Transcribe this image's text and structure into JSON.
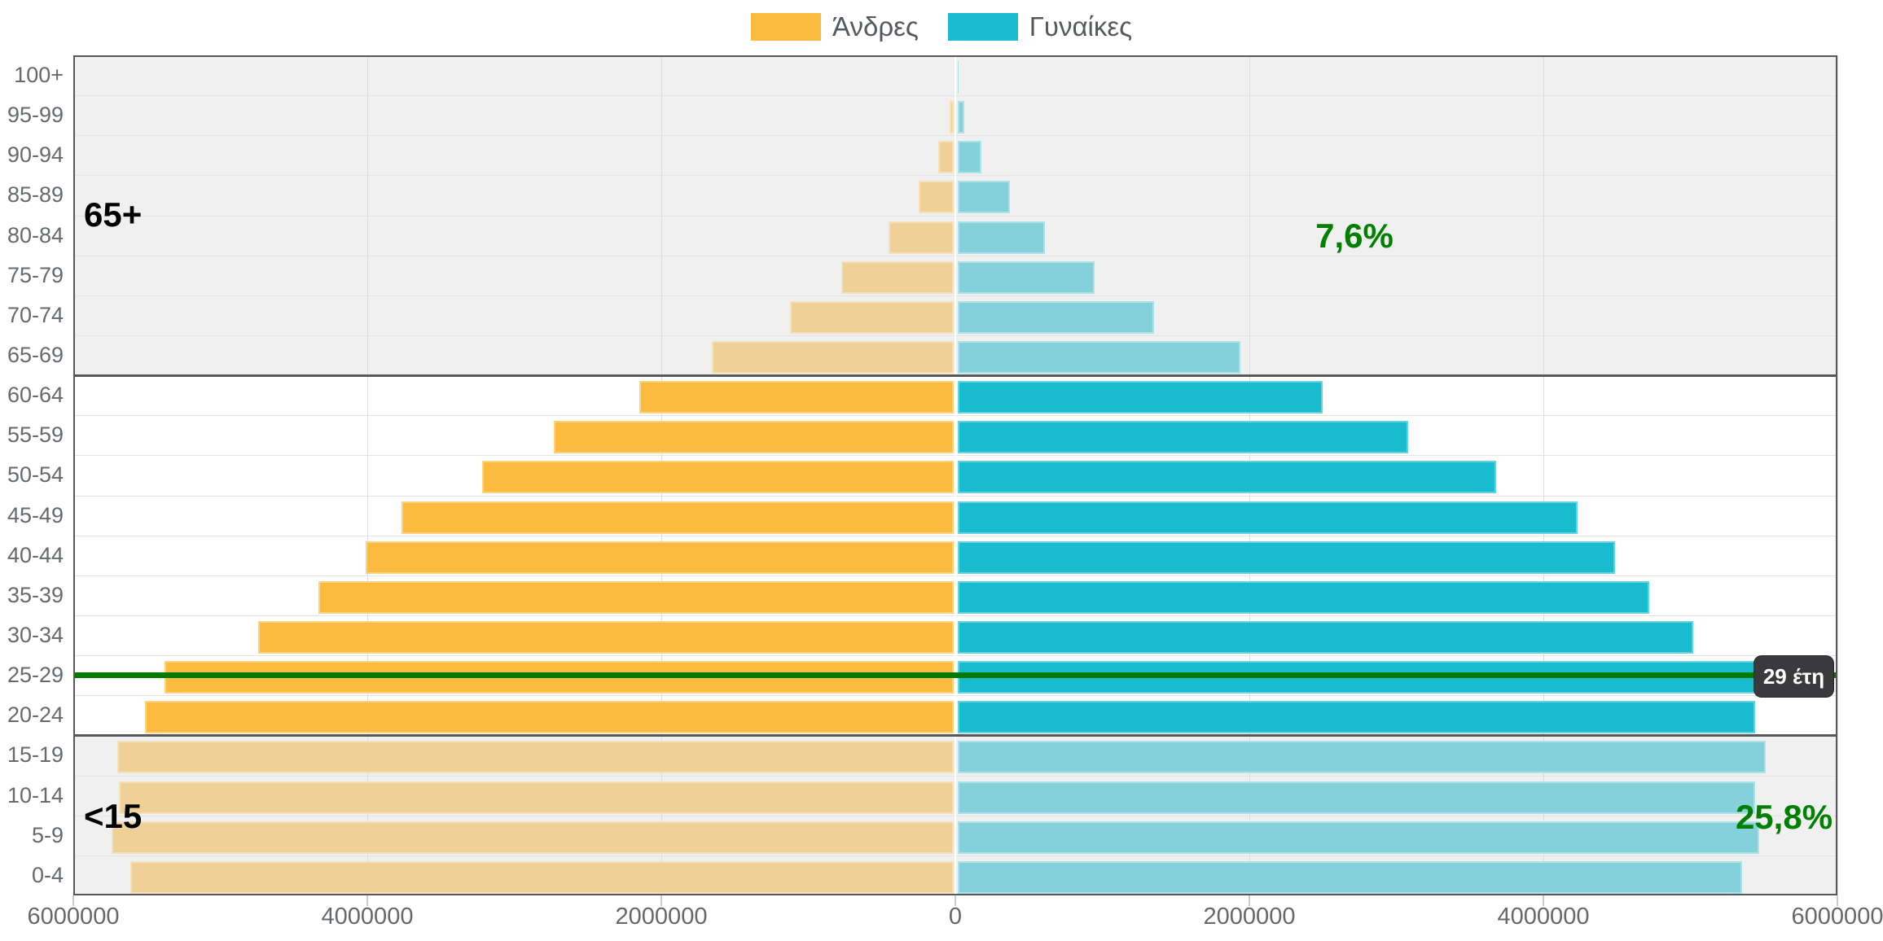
{
  "legend": {
    "items": [
      {
        "label": "Άνδρες",
        "color": "#FCBA3E"
      },
      {
        "label": "Γυναίκες",
        "color": "#18BCCE"
      }
    ]
  },
  "overlays": {
    "old_band_label": "65+",
    "old_band_percent": "7,6%",
    "young_band_label": "<15",
    "young_band_percent": "25,8%",
    "median_tooltip": "29 έτη"
  },
  "colors": {
    "male": "#FCBA3E",
    "male_faded": "#EFD096",
    "female": "#18BCCE",
    "female_faded": "#84D1DC",
    "band_background": "#f0f0f0",
    "middle_background": "#ffffff",
    "band_border": "#58585b",
    "gridline": "#e4e4e4",
    "vertical_gridline": "#dedede",
    "green_line": "#007b00",
    "green_text": "#008000",
    "tooltip_background": "#3a3a3c",
    "axis_text": "#65696c"
  },
  "chart_data": {
    "type": "bar",
    "subtype": "population-pyramid",
    "title": "",
    "xlabel": "",
    "ylabel": "",
    "x_axis": {
      "max_abs": 6000000,
      "ticks": [
        {
          "value": -6000000,
          "label": "6000000"
        },
        {
          "value": -4000000,
          "label": "4000000"
        },
        {
          "value": -2000000,
          "label": "2000000"
        },
        {
          "value": 0,
          "label": "0"
        },
        {
          "value": 2000000,
          "label": "2000000"
        },
        {
          "value": 4000000,
          "label": "4000000"
        },
        {
          "value": 6000000,
          "label": "6000000"
        }
      ]
    },
    "categories_top_down": [
      "100+",
      "95-99",
      "90-94",
      "85-89",
      "80-84",
      "75-79",
      "70-74",
      "65-69",
      "60-64",
      "55-59",
      "50-54",
      "45-49",
      "40-44",
      "35-39",
      "30-34",
      "25-29",
      "20-24",
      "15-19",
      "10-14",
      "5-9",
      "0-4"
    ],
    "series": [
      {
        "name": "Άνδρες",
        "side": "left",
        "values_top_down": [
          8000,
          40000,
          115000,
          250000,
          455000,
          775000,
          1125000,
          1655000,
          2150000,
          2730000,
          3220000,
          3770000,
          4010000,
          4330000,
          4740000,
          5380000,
          5510000,
          5700000,
          5690000,
          5740000,
          5610000
        ]
      },
      {
        "name": "Γυναίκες",
        "side": "right",
        "values_top_down": [
          20000,
          60000,
          180000,
          370000,
          610000,
          950000,
          1350000,
          1940000,
          2500000,
          3080000,
          3680000,
          4230000,
          4490000,
          4720000,
          5020000,
          5480000,
          5440000,
          5510000,
          5440000,
          5470000,
          5350000
        ]
      }
    ],
    "shaded_bands": [
      {
        "label": "65+",
        "percent": "7,6%",
        "rows_top_down_from": "100+",
        "rows_top_down_to": "65-69",
        "faded": true
      },
      {
        "label": "<15",
        "percent": "25,8%",
        "rows_top_down_from": "15-19",
        "rows_top_down_to": "0-4",
        "faded": true
      }
    ],
    "median_age_marker": {
      "age_years": 29,
      "tooltip": "29 έτη"
    },
    "legend_position": "top-center",
    "grid": true
  }
}
